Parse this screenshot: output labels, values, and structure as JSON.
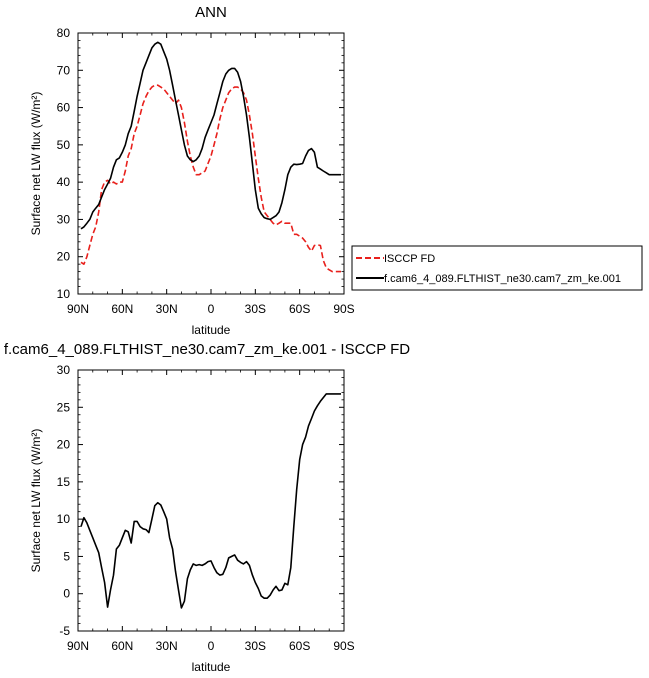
{
  "chart_data": [
    {
      "type": "line",
      "title": "ANN",
      "xlabel": "latitude",
      "ylabel": "Surface net LW flux (W/m²)",
      "xlim": [
        90,
        -90
      ],
      "ylim": [
        10,
        80
      ],
      "yticks": [
        10,
        20,
        30,
        40,
        50,
        60,
        70,
        80
      ],
      "xticks": [
        90,
        60,
        30,
        0,
        -30,
        -60,
        -90
      ],
      "xtick_labels": [
        "90N",
        "60N",
        "30N",
        "0",
        "30S",
        "60S",
        "90S"
      ],
      "grid": false,
      "legend": "right",
      "series": [
        {
          "name": "ISCCP FD",
          "color": "#e8201c",
          "dash": "dashed",
          "x": [
            88,
            86,
            84,
            82,
            80,
            78,
            76,
            74,
            72,
            70,
            68,
            66,
            64,
            62,
            60,
            58,
            56,
            54,
            52,
            50,
            48,
            46,
            44,
            42,
            40,
            38,
            36,
            34,
            32,
            30,
            28,
            26,
            24,
            22,
            20,
            18,
            16,
            14,
            12,
            10,
            8,
            6,
            4,
            2,
            0,
            -2,
            -4,
            -6,
            -8,
            -10,
            -12,
            -14,
            -16,
            -18,
            -20,
            -22,
            -24,
            -26,
            -28,
            -30,
            -32,
            -34,
            -36,
            -38,
            -40,
            -42,
            -44,
            -46,
            -48,
            -50,
            -52,
            -54,
            -56,
            -58,
            -60,
            -62,
            -64,
            -66,
            -68,
            -70,
            -72,
            -74,
            -76,
            -78,
            -80,
            -82,
            -84,
            -86,
            -88
          ],
          "y": [
            18.5,
            18,
            20,
            23,
            26,
            28,
            32,
            38,
            40,
            40.5,
            39.5,
            40,
            39.5,
            40,
            40,
            43,
            47,
            49,
            53,
            55,
            58,
            61,
            63,
            64.5,
            65.5,
            66,
            66,
            65.5,
            65,
            64,
            63,
            62,
            61,
            62,
            60,
            56,
            51,
            47,
            44,
            42,
            42,
            42.5,
            43,
            45,
            47,
            50,
            53,
            57,
            60,
            62,
            64,
            65,
            65.5,
            65.5,
            65,
            64,
            62,
            58,
            53,
            47,
            41,
            36,
            32,
            31,
            30,
            29,
            28.5,
            29,
            29.5,
            29,
            29,
            29,
            26,
            26,
            25.5,
            25,
            24,
            22.5,
            21.5,
            23,
            23.2,
            23,
            19,
            17,
            16.5,
            16,
            16,
            16,
            16
          ]
        },
        {
          "name": "f.cam6_4_089.FLTHIST_ne30.cam7_zm_ke.001",
          "color": "#000000",
          "dash": "solid",
          "x": [
            88,
            86,
            84,
            82,
            80,
            78,
            76,
            74,
            72,
            70,
            68,
            66,
            64,
            62,
            60,
            58,
            56,
            54,
            52,
            50,
            48,
            46,
            44,
            42,
            40,
            38,
            36,
            34,
            32,
            30,
            28,
            26,
            24,
            22,
            20,
            18,
            16,
            14,
            12,
            10,
            8,
            6,
            4,
            2,
            0,
            -2,
            -4,
            -6,
            -8,
            -10,
            -12,
            -14,
            -16,
            -18,
            -20,
            -22,
            -24,
            -26,
            -28,
            -30,
            -32,
            -34,
            -36,
            -38,
            -40,
            -42,
            -44,
            -46,
            -48,
            -50,
            -52,
            -54,
            -56,
            -58,
            -60,
            -62,
            -64,
            -66,
            -68,
            -70,
            -72,
            -74,
            -76,
            -78,
            -80,
            -82,
            -84,
            -86,
            -88
          ],
          "y": [
            27.5,
            28,
            29,
            30,
            32,
            33,
            34,
            36,
            38,
            39.5,
            41,
            44,
            46,
            46.5,
            48,
            50,
            53,
            55,
            59,
            63,
            66.5,
            70,
            72,
            74,
            76,
            77,
            77.5,
            77,
            75,
            73,
            70,
            66,
            62,
            58,
            54,
            50,
            47,
            46,
            45.5,
            46,
            47,
            49,
            52,
            54,
            56,
            58,
            61,
            64,
            67,
            69,
            70,
            70.5,
            70.5,
            69.5,
            67,
            63,
            58,
            52,
            45,
            38,
            33,
            31.5,
            30.5,
            30.2,
            30,
            30.5,
            31,
            32,
            34.5,
            38,
            42,
            44,
            44.8,
            44.7,
            44.8,
            45,
            47,
            48.5,
            49,
            48,
            44,
            43.5,
            43,
            42.5,
            42,
            42,
            42,
            42,
            42
          ]
        }
      ]
    },
    {
      "type": "line",
      "title": "f.cam6_4_089.FLTHIST_ne30.cam7_zm_ke.001 - ISCCP FD",
      "xlabel": "latitude",
      "ylabel": "Surface net LW flux (W/m²)",
      "xlim": [
        90,
        -90
      ],
      "ylim": [
        -5,
        30
      ],
      "yticks": [
        -5,
        0,
        5,
        10,
        15,
        20,
        25,
        30
      ],
      "xticks": [
        90,
        60,
        30,
        0,
        -30,
        -60,
        -90
      ],
      "xtick_labels": [
        "90N",
        "60N",
        "30N",
        "0",
        "30S",
        "60S",
        "90S"
      ],
      "grid": false,
      "legend": "none",
      "series": [
        {
          "color": "#000000",
          "dash": "solid",
          "x": [
            88,
            86,
            84,
            82,
            80,
            78,
            76,
            74,
            72,
            70,
            68,
            66,
            64,
            62,
            60,
            58,
            56,
            54,
            52,
            50,
            48,
            46,
            44,
            42,
            40,
            38,
            36,
            34,
            32,
            30,
            28,
            26,
            24,
            22,
            20,
            18,
            16,
            14,
            12,
            10,
            8,
            6,
            4,
            2,
            0,
            -2,
            -4,
            -6,
            -8,
            -10,
            -12,
            -14,
            -16,
            -18,
            -20,
            -22,
            -24,
            -26,
            -28,
            -30,
            -32,
            -34,
            -36,
            -38,
            -40,
            -42,
            -44,
            -46,
            -48,
            -50,
            -52,
            -54,
            -56,
            -58,
            -60,
            -62,
            -64,
            -66,
            -68,
            -70,
            -72,
            -74,
            -76,
            -78,
            -80,
            -82,
            -84,
            -86,
            -88
          ],
          "y": [
            9,
            10.2,
            9.5,
            8.5,
            7.5,
            6.5,
            5.5,
            3.5,
            1.5,
            -1.8,
            0.5,
            2.5,
            6,
            6.5,
            7.5,
            8.5,
            8.3,
            6.8,
            9.7,
            9.7,
            9,
            8.7,
            8.6,
            8.2,
            10,
            11.8,
            12.2,
            11.9,
            11,
            10,
            7.5,
            6,
            3,
            0.5,
            -1.9,
            -1,
            2,
            3.2,
            4,
            3.8,
            3.9,
            3.8,
            4,
            4.3,
            4.4,
            3.5,
            2.8,
            2.5,
            2.6,
            3.5,
            4.8,
            5,
            5.2,
            4.5,
            4.2,
            4,
            4.3,
            3.8,
            2.5,
            1.5,
            0.7,
            -0.3,
            -0.6,
            -0.6,
            -0.2,
            0.5,
            1,
            0.4,
            0.5,
            1.4,
            1.2,
            3.5,
            9,
            14,
            18,
            20,
            21,
            22.5,
            23.5,
            24.5,
            25.2,
            25.8,
            26.3,
            26.8,
            26.8,
            26.8,
            26.8,
            26.8,
            26.8
          ]
        }
      ]
    }
  ]
}
